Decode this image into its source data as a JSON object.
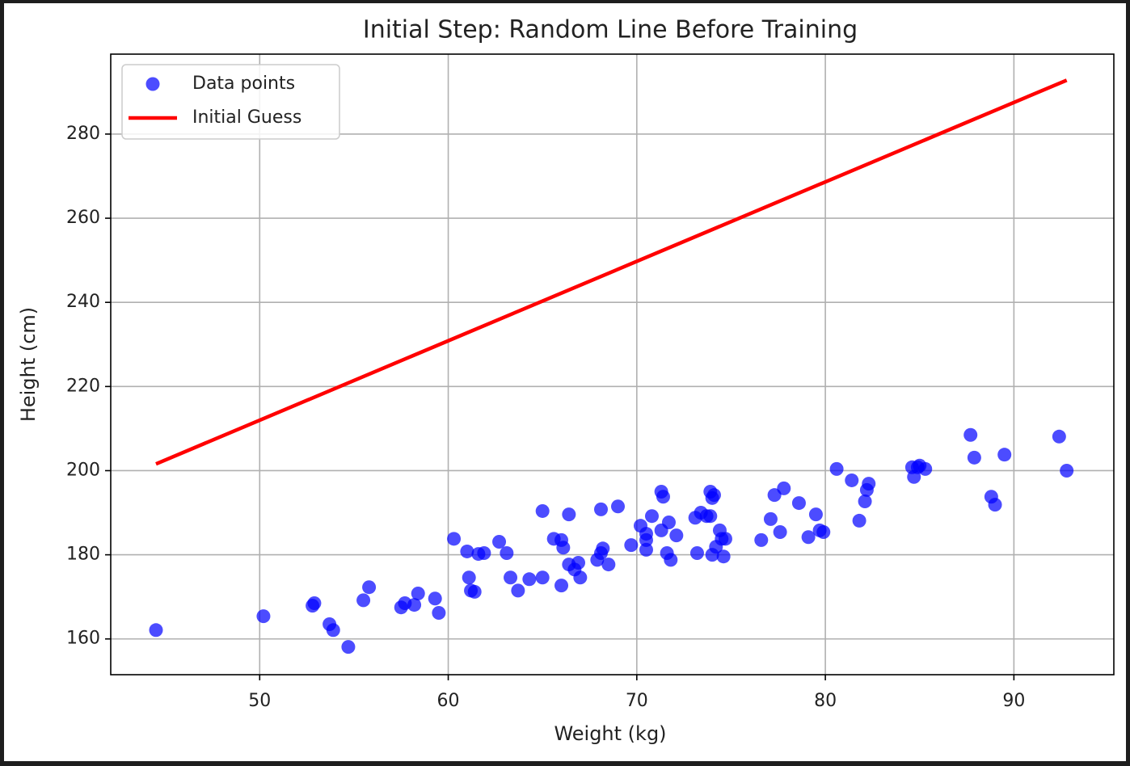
{
  "chart_data": {
    "type": "scatter",
    "title": "Initial Step: Random Line Before Training",
    "x_label": "Weight (kg)",
    "y_label": "Height (cm)",
    "xlim": [
      42.1,
      95.3
    ],
    "ylim": [
      151.5,
      299.0
    ],
    "xticks": [
      50,
      60,
      70,
      80,
      90
    ],
    "yticks": [
      160,
      180,
      200,
      220,
      240,
      260,
      280
    ],
    "grid": true,
    "legend": "upper-left",
    "series": [
      {
        "name": "Data points",
        "type": "scatter",
        "color": "blue",
        "alpha": 0.7,
        "x": [
          44.5,
          50.2,
          52.8,
          52.9,
          53.7,
          53.9,
          54.7,
          55.5,
          55.8,
          57.5,
          57.7,
          58.2,
          58.4,
          59.3,
          59.5,
          60.3,
          61.0,
          61.1,
          61.2,
          61.4,
          61.6,
          61.9,
          62.7,
          63.1,
          63.3,
          63.7,
          64.3,
          65.0,
          65.0,
          65.6,
          66.0,
          66.0,
          66.1,
          66.4,
          66.4,
          66.7,
          66.9,
          67.0,
          67.9,
          68.1,
          68.1,
          68.2,
          68.5,
          69.0,
          69.7,
          70.2,
          70.5,
          70.5,
          70.5,
          70.8,
          71.3,
          71.3,
          71.4,
          71.6,
          71.7,
          71.8,
          72.1,
          73.1,
          73.2,
          73.4,
          73.7,
          73.9,
          73.9,
          74.0,
          74.0,
          74.1,
          74.2,
          74.4,
          74.5,
          74.6,
          74.7,
          76.6,
          77.1,
          77.3,
          77.6,
          77.8,
          78.6,
          79.1,
          79.5,
          79.7,
          79.9,
          80.6,
          81.4,
          81.8,
          82.1,
          82.2,
          82.3,
          84.6,
          84.7,
          84.9,
          85.0,
          85.3,
          87.7,
          87.9,
          88.8,
          89.0,
          89.5,
          92.4,
          92.8
        ],
        "values": [
          162.1,
          165.4,
          167.9,
          168.5,
          163.5,
          162.1,
          158.1,
          169.2,
          172.3,
          167.5,
          168.5,
          168.1,
          170.8,
          169.6,
          166.2,
          183.8,
          180.8,
          174.6,
          171.5,
          171.2,
          180.2,
          180.4,
          183.1,
          180.4,
          174.6,
          171.5,
          174.2,
          174.6,
          190.4,
          183.8,
          183.5,
          172.7,
          181.7,
          189.6,
          177.7,
          176.5,
          178.1,
          174.6,
          178.8,
          190.8,
          180.4,
          181.5,
          177.7,
          191.5,
          182.3,
          186.9,
          185.0,
          183.5,
          181.2,
          189.2,
          195.0,
          185.8,
          193.8,
          180.4,
          187.7,
          178.8,
          184.6,
          188.8,
          180.4,
          190.0,
          189.2,
          189.2,
          195.0,
          193.5,
          180.0,
          194.2,
          181.9,
          185.8,
          183.8,
          179.6,
          183.8,
          183.5,
          188.5,
          194.2,
          185.4,
          195.8,
          192.3,
          184.2,
          189.6,
          185.8,
          185.4,
          200.4,
          197.7,
          188.1,
          192.7,
          195.4,
          196.9,
          200.8,
          198.5,
          200.8,
          201.2,
          200.4,
          208.5,
          203.1,
          193.8,
          191.9,
          203.8,
          208.1,
          200.0
        ]
      },
      {
        "name": "Initial Guess",
        "type": "line",
        "color": "red",
        "x": [
          44.5,
          92.8
        ],
        "values": [
          201.6,
          292.8
        ]
      }
    ]
  }
}
